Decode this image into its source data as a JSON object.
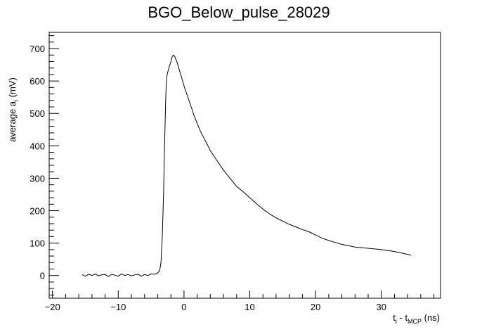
{
  "chart_data": {
    "type": "line",
    "title": "BGO_Below_pulse_28029",
    "xlabel": {
      "main1": "t",
      "sub1": "i",
      "main2": " - t",
      "sub2": "MCP",
      "main3": " (ns)"
    },
    "ylabel": {
      "main1": "average a",
      "sub1": "i",
      "main2": "  (mV)"
    },
    "xlim": [
      -20.5,
      39
    ],
    "ylim": [
      -70,
      750
    ],
    "x_ticks": [
      -20,
      -10,
      0,
      10,
      20,
      30
    ],
    "y_ticks": [
      0,
      100,
      200,
      300,
      400,
      500,
      600,
      700
    ],
    "grid": false,
    "legend": "none",
    "line_color": "#000000",
    "series": [
      {
        "x": [
          -15.5,
          -15.0,
          -14.5,
          -14.0,
          -13.5,
          -13.0,
          -12.5,
          -12.0,
          -11.5,
          -11.0,
          -10.5,
          -10.0,
          -9.5,
          -9.0,
          -8.5,
          -8.0,
          -7.5,
          -7.0,
          -6.5,
          -6.0,
          -5.5,
          -5.0,
          -4.5,
          -4.0,
          -3.7,
          -3.5,
          -3.3,
          -3.1,
          -3.0,
          -2.9,
          -2.8,
          -2.7,
          -2.6,
          -2.5,
          -2.3,
          -2.0,
          -1.8,
          -1.6,
          -1.4,
          -1.2,
          -1.0,
          -0.8,
          -0.5,
          -0.2,
          0.0,
          0.5,
          1.0,
          1.5,
          2.0,
          2.5,
          3.0,
          3.5,
          4.0,
          5.0,
          6.0,
          7.0,
          8.0,
          9.0,
          10.0,
          11.0,
          12.0,
          13.0,
          14.0,
          15.0,
          16.0,
          17.0,
          18.0,
          19.0,
          20.0,
          21.0,
          22.0,
          23.0,
          24.0,
          25.0,
          26.0,
          27.0,
          28.0,
          29.0,
          30.0,
          31.0,
          32.0,
          33.0,
          34.5
        ],
        "y": [
          3,
          -2,
          4,
          0,
          5,
          -1,
          2,
          3,
          -3,
          4,
          1,
          -2,
          5,
          0,
          3,
          -1,
          2,
          4,
          -2,
          3,
          0,
          5,
          4,
          8,
          15,
          40,
          120,
          260,
          360,
          450,
          530,
          590,
          615,
          625,
          640,
          660,
          675,
          680,
          675,
          665,
          655,
          640,
          620,
          600,
          585,
          555,
          525,
          495,
          470,
          445,
          425,
          405,
          385,
          355,
          325,
          300,
          275,
          258,
          240,
          222,
          205,
          190,
          178,
          168,
          158,
          150,
          142,
          135,
          125,
          115,
          108,
          102,
          96,
          92,
          88,
          86,
          84,
          82,
          80,
          77,
          74,
          70,
          63
        ]
      }
    ]
  }
}
